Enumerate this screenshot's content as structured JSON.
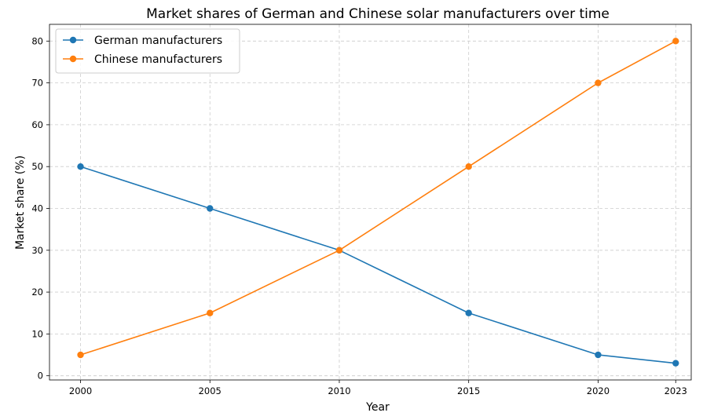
{
  "chart_data": {
    "type": "line",
    "title": "Market shares of German and Chinese solar manufacturers over time",
    "xlabel": "Year",
    "ylabel": "Market share (%)",
    "x": [
      2000,
      2005,
      2010,
      2015,
      2020,
      2023
    ],
    "x_ticks": [
      "2000",
      "2005",
      "2010",
      "2015",
      "2020",
      "2023"
    ],
    "xlim": [
      1998.8,
      2023.6
    ],
    "ylim": [
      -1,
      84
    ],
    "y_ticks": [
      "0",
      "10",
      "20",
      "30",
      "40",
      "50",
      "60",
      "70",
      "80"
    ],
    "grid": true,
    "legend_position": "top-left",
    "series": [
      {
        "name": "German manufacturers",
        "color": "#1f77b4",
        "values": [
          50,
          40,
          30,
          15,
          5,
          3
        ]
      },
      {
        "name": "Chinese manufacturers",
        "color": "#ff7f0e",
        "values": [
          5,
          15,
          30,
          50,
          70,
          80
        ]
      }
    ]
  }
}
